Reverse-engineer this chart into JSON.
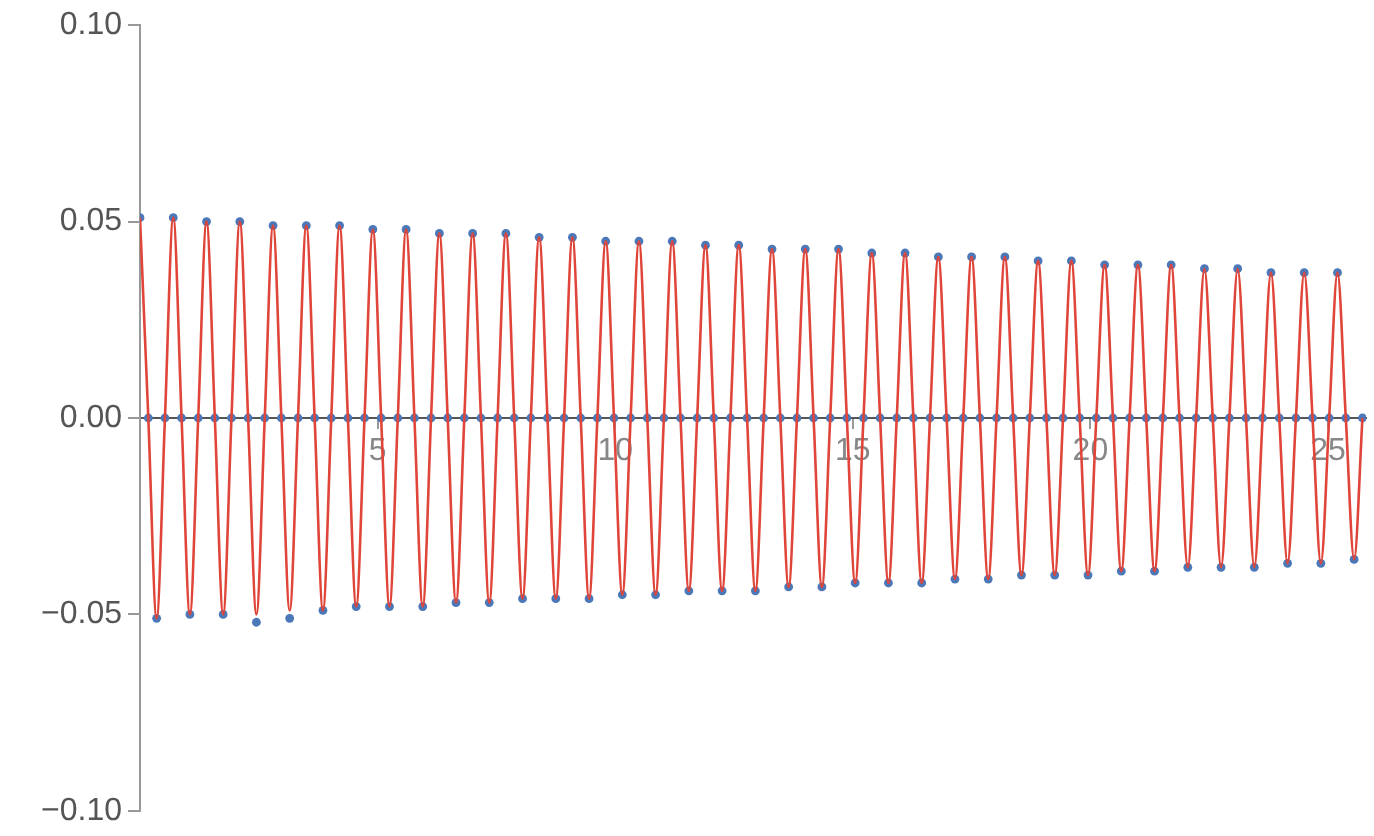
{
  "chart_data": {
    "type": "scatter",
    "x": [
      0,
      0.175,
      0.35,
      0.525,
      0.7,
      0.875,
      1.05,
      1.225,
      1.4,
      1.575,
      1.75,
      1.925,
      2.1,
      2.275,
      2.45,
      2.625,
      2.8,
      2.975,
      3.15,
      3.325,
      3.5,
      3.675,
      3.85,
      4.025,
      4.2,
      4.375,
      4.55,
      4.725,
      4.9,
      5.075,
      5.25,
      5.425,
      5.6,
      5.775,
      5.95,
      6.125,
      6.3,
      6.475,
      6.65,
      6.825,
      7,
      7.175,
      7.35,
      7.525,
      7.7,
      7.875,
      8.05,
      8.225,
      8.4,
      8.575,
      8.75,
      8.925,
      9.1,
      9.275,
      9.45,
      9.625,
      9.8,
      9.975,
      10.15,
      10.325,
      10.5,
      10.675,
      10.85,
      11.025,
      11.2,
      11.375,
      11.55,
      11.725,
      11.9,
      12.075,
      12.25,
      12.425,
      12.6,
      12.775,
      12.95,
      13.125,
      13.3,
      13.475,
      13.65,
      13.825,
      14,
      14.175,
      14.35,
      14.525,
      14.7,
      14.875,
      15.05,
      15.225,
      15.4,
      15.575,
      15.75,
      15.925,
      16.1,
      16.275,
      16.45,
      16.625,
      16.8,
      16.975,
      17.15,
      17.325,
      17.5,
      17.675,
      17.85,
      18.025,
      18.2,
      18.375,
      18.55,
      18.725,
      18.9,
      19.075,
      19.25,
      19.425,
      19.6,
      19.775,
      19.95,
      20.125,
      20.3,
      20.475,
      20.65,
      20.825,
      21,
      21.175,
      21.35,
      21.525,
      21.7,
      21.875,
      22.05,
      22.225,
      22.4,
      22.575,
      22.75,
      22.925,
      23.1,
      23.275,
      23.45,
      23.625,
      23.8,
      23.975,
      24.15,
      24.325,
      24.5,
      24.675,
      24.85,
      25.025,
      25.2,
      25.375,
      25.55,
      25.725
    ],
    "series": [
      {
        "type": "scatter",
        "marker": "circle",
        "color": "#4a78b8",
        "values": [
          0.051,
          0,
          -0.051,
          0,
          0.051,
          0,
          -0.05,
          0,
          0.05,
          0,
          -0.05,
          0,
          0.05,
          0,
          -0.052,
          0,
          0.049,
          0,
          -0.051,
          0,
          0.049,
          0,
          -0.049,
          0,
          0.049,
          0,
          -0.048,
          0,
          0.048,
          0,
          -0.048,
          0,
          0.048,
          0,
          -0.048,
          0,
          0.047,
          0,
          -0.047,
          0,
          0.047,
          0,
          -0.047,
          0,
          0.047,
          0,
          -0.046,
          0,
          0.046,
          0,
          -0.046,
          0,
          0.046,
          0,
          -0.046,
          0,
          0.045,
          0,
          -0.045,
          0,
          0.045,
          0,
          -0.045,
          0,
          0.045,
          0,
          -0.044,
          0,
          0.044,
          0,
          -0.044,
          0,
          0.044,
          0,
          -0.044,
          0,
          0.043,
          0,
          -0.043,
          0,
          0.043,
          0,
          -0.043,
          0,
          0.043,
          0,
          -0.042,
          0,
          0.042,
          0,
          -0.042,
          0,
          0.042,
          0,
          -0.042,
          0,
          0.041,
          0,
          -0.041,
          0,
          0.041,
          0,
          -0.041,
          0,
          0.041,
          0,
          -0.04,
          0,
          0.04,
          0,
          -0.04,
          0,
          0.04,
          0,
          -0.04,
          0,
          0.039,
          0,
          -0.039,
          0,
          0.039,
          0,
          -0.039,
          0,
          0.039,
          0,
          -0.038,
          0,
          0.038,
          0,
          -0.038,
          0,
          0.038,
          0,
          -0.038,
          0,
          0.037,
          0,
          -0.037,
          0,
          0.037,
          0,
          -0.037,
          0,
          0.037,
          0,
          -0.036,
          0
        ]
      },
      {
        "type": "line",
        "marker": "none",
        "color": "#e0453a",
        "values": [
          0.051,
          0,
          -0.051,
          0,
          0.051,
          0,
          -0.05,
          0,
          0.05,
          0,
          -0.05,
          0,
          0.05,
          0,
          -0.05,
          0,
          0.049,
          0,
          -0.049,
          0,
          0.049,
          0,
          -0.049,
          0,
          0.049,
          0,
          -0.048,
          0,
          0.048,
          0,
          -0.048,
          0,
          0.048,
          0,
          -0.048,
          0,
          0.047,
          0,
          -0.047,
          0,
          0.047,
          0,
          -0.047,
          0,
          0.047,
          0,
          -0.046,
          0,
          0.046,
          0,
          -0.046,
          0,
          0.046,
          0,
          -0.046,
          0,
          0.045,
          0,
          -0.045,
          0,
          0.045,
          0,
          -0.045,
          0,
          0.045,
          0,
          -0.044,
          0,
          0.044,
          0,
          -0.044,
          0,
          0.044,
          0,
          -0.044,
          0,
          0.043,
          0,
          -0.043,
          0,
          0.043,
          0,
          -0.043,
          0,
          0.043,
          0,
          -0.042,
          0,
          0.042,
          0,
          -0.042,
          0,
          0.042,
          0,
          -0.042,
          0,
          0.041,
          0,
          -0.041,
          0,
          0.041,
          0,
          -0.041,
          0,
          0.041,
          0,
          -0.04,
          0,
          0.04,
          0,
          -0.04,
          0,
          0.04,
          0,
          -0.04,
          0,
          0.039,
          0,
          -0.039,
          0,
          0.039,
          0,
          -0.039,
          0,
          0.039,
          0,
          -0.038,
          0,
          0.038,
          0,
          -0.038,
          0,
          0.038,
          0,
          -0.038,
          0,
          0.037,
          0,
          -0.037,
          0,
          0.037,
          0,
          -0.037,
          0,
          0.037,
          0,
          -0.036,
          0
        ]
      }
    ],
    "xlim": [
      0,
      25.8
    ],
    "xticks": [
      5,
      10,
      15,
      20,
      25
    ],
    "ylim": [
      -0.1,
      0.1
    ],
    "yticks": [
      {
        "value": -0.1,
        "label": "−0.10"
      },
      {
        "value": -0.05,
        "label": "−0.05"
      },
      {
        "value": 0,
        "label": "0.00"
      },
      {
        "value": 0.05,
        "label": "0.05"
      },
      {
        "value": 0.1,
        "label": "0.10"
      }
    ],
    "grid": false,
    "legend": false
  }
}
